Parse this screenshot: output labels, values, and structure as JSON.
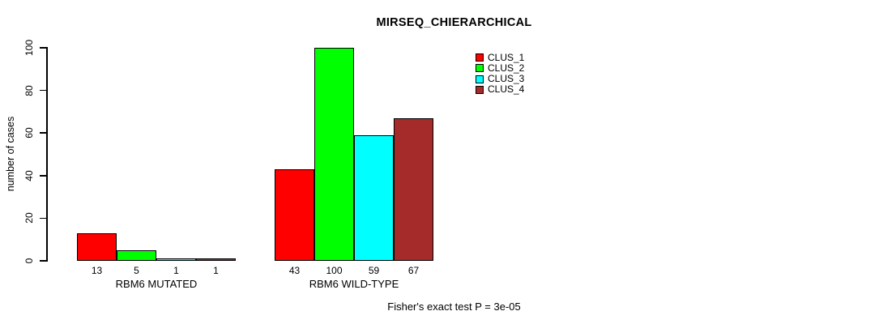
{
  "title": "MIRSEQ_CHIERARCHICAL",
  "ylabel": "number of cases",
  "footer": "Fisher's exact test P = 3e-05",
  "chart_data": {
    "type": "bar",
    "title": "MIRSEQ_CHIERARCHICAL",
    "xlabel": "",
    "ylabel": "number of cases",
    "categories": [
      "RBM6 MUTATED",
      "RBM6 WILD-TYPE"
    ],
    "series": [
      {
        "name": "CLUS_1",
        "color": "#FF0000",
        "values": [
          13,
          43
        ]
      },
      {
        "name": "CLUS_2",
        "color": "#00FF00",
        "values": [
          5,
          100
        ]
      },
      {
        "name": "CLUS_3",
        "color": "#00FFFF",
        "values": [
          1,
          59
        ]
      },
      {
        "name": "CLUS_4",
        "color": "#A52A2A",
        "values": [
          1,
          67
        ]
      }
    ],
    "bar_value_labels": [
      [
        "13",
        "5",
        "1",
        "1"
      ],
      [
        "43",
        "100",
        "59",
        "67"
      ]
    ],
    "ylim": [
      0,
      100
    ],
    "yticks": [
      0,
      20,
      40,
      60,
      80,
      100
    ],
    "grid": false,
    "legend_position": "top-right",
    "annotation": "Fisher's exact test P = 3e-05"
  }
}
